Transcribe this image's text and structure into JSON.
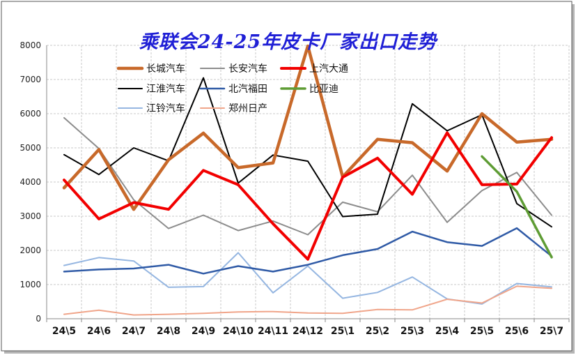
{
  "chart_data": {
    "type": "line",
    "title": "乘联会24-25年皮卡厂家出口走势",
    "xlabel": "",
    "ylabel": "",
    "ylim": [
      0,
      8000
    ],
    "yticks": [
      "0",
      "1000",
      "2000",
      "3000",
      "4000",
      "5000",
      "6000",
      "7000",
      "8000"
    ],
    "grid": "dashed vertical and horizontal",
    "legend_position": "top-left, inside plot",
    "categories": [
      "24\\5",
      "24\\6",
      "24\\7",
      "24\\8",
      "24\\9",
      "24\\10",
      "24\\11",
      "24\\12",
      "25\\1",
      "25\\2",
      "25\\3",
      "25\\4",
      "25\\5",
      "25\\6",
      "25\\7"
    ],
    "series": [
      {
        "name": "长城汽车",
        "color": "#c8692a",
        "width": 4.5,
        "values": [
          3830,
          4950,
          3200,
          4650,
          5430,
          4420,
          4560,
          7980,
          4150,
          5250,
          5150,
          4320,
          6000,
          5170,
          5250
        ]
      },
      {
        "name": "长安汽车",
        "color": "#8c8c8c",
        "width": 2,
        "values": [
          5880,
          4980,
          3480,
          2640,
          3030,
          2580,
          2860,
          2460,
          3410,
          3130,
          4200,
          2820,
          3750,
          4280,
          3030
        ]
      },
      {
        "name": "上汽大通",
        "color": "#f20000",
        "width": 4,
        "values": [
          4060,
          2920,
          3400,
          3200,
          4340,
          3920,
          2780,
          1740,
          4140,
          4700,
          3640,
          5440,
          3920,
          3940,
          5300
        ]
      },
      {
        "name": "江淮汽车",
        "color": "#000000",
        "width": 2,
        "values": [
          4800,
          4220,
          5000,
          4620,
          7050,
          3970,
          4790,
          4610,
          2990,
          3060,
          6290,
          5500,
          5970,
          3370,
          2690
        ]
      },
      {
        "name": "北汽福田",
        "color": "#2f5aa6",
        "width": 2.5,
        "values": [
          1380,
          1440,
          1470,
          1580,
          1320,
          1540,
          1380,
          1580,
          1860,
          2040,
          2550,
          2240,
          2130,
          2650,
          1830
        ]
      },
      {
        "name": "比亚迪",
        "color": "#5e9c34",
        "width": 3.5,
        "values": [
          null,
          null,
          null,
          null,
          null,
          null,
          null,
          null,
          null,
          null,
          null,
          null,
          4750,
          3720,
          1800
        ]
      },
      {
        "name": "江铃汽车",
        "color": "#95b6e1",
        "width": 2,
        "values": [
          1560,
          1790,
          1690,
          920,
          940,
          1930,
          760,
          1540,
          600,
          770,
          1220,
          580,
          430,
          1030,
          930
        ]
      },
      {
        "name": "郑州日产",
        "color": "#f0a58a",
        "width": 2,
        "values": [
          130,
          250,
          110,
          130,
          160,
          200,
          210,
          170,
          160,
          270,
          260,
          570,
          460,
          950,
          890
        ]
      }
    ]
  }
}
